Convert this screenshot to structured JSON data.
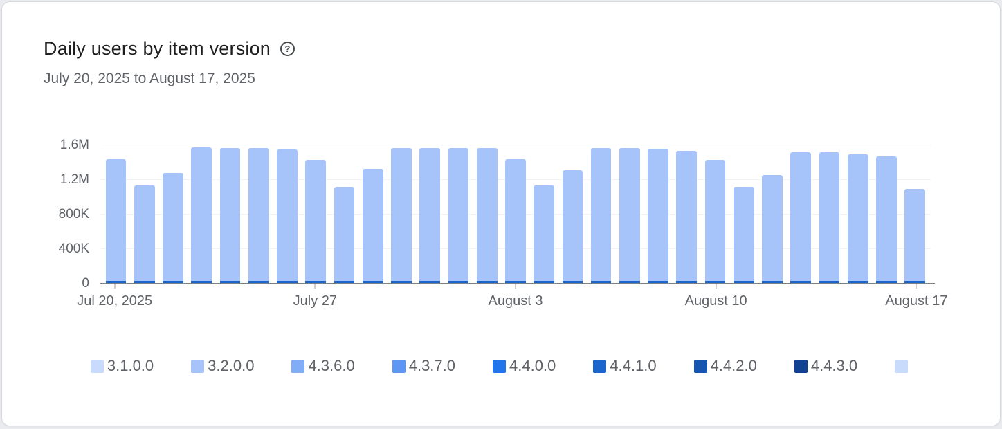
{
  "page": {
    "background": "#e9ebef"
  },
  "card": {
    "title": "Daily users by item version",
    "help_icon": "?",
    "subtitle": "July 20, 2025 to August 17, 2025"
  },
  "chart_data": {
    "type": "bar",
    "stacked": true,
    "title": "Daily users by item version",
    "date_range": "July 20, 2025 to August 17, 2025",
    "x": [
      "Jul 20",
      "Jul 21",
      "Jul 22",
      "Jul 23",
      "Jul 24",
      "Jul 25",
      "Jul 26",
      "Jul 27",
      "Jul 28",
      "Jul 29",
      "Jul 30",
      "Jul 31",
      "Aug 1",
      "Aug 2",
      "Aug 3",
      "Aug 4",
      "Aug 5",
      "Aug 6",
      "Aug 7",
      "Aug 8",
      "Aug 9",
      "Aug 10",
      "Aug 11",
      "Aug 12",
      "Aug 13",
      "Aug 14",
      "Aug 15",
      "Aug 16",
      "Aug 17"
    ],
    "x_tick_positions": [
      0,
      7,
      14,
      21,
      28
    ],
    "x_tick_labels": [
      "Jul 20, 2025",
      "July 27",
      "August 3",
      "August 10",
      "August 17"
    ],
    "ylim": [
      0,
      1600000
    ],
    "y_ticks": [
      {
        "label": "0",
        "value": 0
      },
      {
        "label": "400K",
        "value": 400000
      },
      {
        "label": "800K",
        "value": 800000
      },
      {
        "label": "1.2M",
        "value": 1200000
      },
      {
        "label": "1.6M",
        "value": 1600000
      }
    ],
    "grid": true,
    "legend_position": "bottom",
    "series": [
      {
        "name": "4.4.1.0",
        "color": "#1a66cd",
        "values": [
          30000,
          30000,
          30000,
          30000,
          30000,
          30000,
          30000,
          30000,
          30000,
          30000,
          30000,
          30000,
          30000,
          30000,
          30000,
          30000,
          30000,
          30000,
          30000,
          30000,
          30000,
          30000,
          30000,
          30000,
          30000,
          30000,
          30000,
          30000,
          30000
        ]
      },
      {
        "name": "3.2.0.0",
        "color": "#a6c4f9",
        "values": [
          1410000,
          1110000,
          1250000,
          1550000,
          1540000,
          1540000,
          1520000,
          1400000,
          1090000,
          1300000,
          1540000,
          1540000,
          1540000,
          1540000,
          1410000,
          1110000,
          1280000,
          1540000,
          1540000,
          1530000,
          1510000,
          1400000,
          1090000,
          1230000,
          1490000,
          1490000,
          1470000,
          1440000,
          1070000
        ]
      }
    ],
    "bar_totals": [
      1440000,
      1140000,
      1280000,
      1580000,
      1570000,
      1570000,
      1550000,
      1430000,
      1120000,
      1330000,
      1570000,
      1570000,
      1570000,
      1570000,
      1440000,
      1140000,
      1310000,
      1570000,
      1570000,
      1560000,
      1540000,
      1430000,
      1120000,
      1260000,
      1520000,
      1520000,
      1500000,
      1470000,
      1100000
    ]
  },
  "legend": {
    "items": [
      {
        "label": "3.1.0.0",
        "color": "#c8dbfc"
      },
      {
        "label": "3.2.0.0",
        "color": "#a6c4f9"
      },
      {
        "label": "4.3.6.0",
        "color": "#81acf6"
      },
      {
        "label": "4.3.7.0",
        "color": "#5d96f3"
      },
      {
        "label": "4.4.0.0",
        "color": "#2176ec"
      },
      {
        "label": "4.4.1.0",
        "color": "#1a66cd"
      },
      {
        "label": "4.4.2.0",
        "color": "#1655b0"
      },
      {
        "label": "4.4.3.0",
        "color": "#124393"
      },
      {
        "label": "",
        "color": "#c8dbfc"
      }
    ]
  }
}
